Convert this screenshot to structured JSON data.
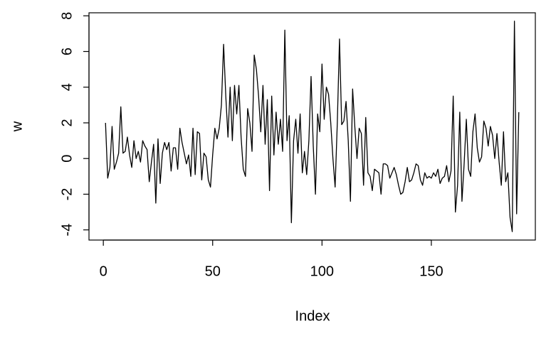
{
  "chart_data": {
    "type": "line",
    "xlabel": "Index",
    "ylabel": "w",
    "color": "#000000",
    "x": [
      1,
      2,
      3,
      4,
      5,
      6,
      7,
      8,
      9,
      10,
      11,
      12,
      13,
      14,
      15,
      16,
      17,
      18,
      19,
      20,
      21,
      22,
      23,
      24,
      25,
      26,
      27,
      28,
      29,
      30,
      31,
      32,
      33,
      34,
      35,
      36,
      37,
      38,
      39,
      40,
      41,
      42,
      43,
      44,
      45,
      46,
      47,
      48,
      49,
      50,
      51,
      52,
      53,
      54,
      55,
      56,
      57,
      58,
      59,
      60,
      61,
      62,
      63,
      64,
      65,
      66,
      67,
      68,
      69,
      70,
      71,
      72,
      73,
      74,
      75,
      76,
      77,
      78,
      79,
      80,
      81,
      82,
      83,
      84,
      85,
      86,
      87,
      88,
      89,
      90,
      91,
      92,
      93,
      94,
      95,
      96,
      97,
      98,
      99,
      100,
      101,
      102,
      103,
      104,
      105,
      106,
      107,
      108,
      109,
      110,
      111,
      112,
      113,
      114,
      115,
      116,
      117,
      118,
      119,
      120,
      121,
      122,
      123,
      124,
      125,
      126,
      127,
      128,
      129,
      130,
      131,
      132,
      133,
      134,
      135,
      136,
      137,
      138,
      139,
      140,
      141,
      142,
      143,
      144,
      145,
      146,
      147,
      148,
      149,
      150,
      151,
      152,
      153,
      154,
      155,
      156,
      157,
      158,
      159,
      160,
      161,
      162,
      163,
      164,
      165,
      166,
      167,
      168,
      169,
      170,
      171,
      172,
      173,
      174,
      175,
      176,
      177,
      178,
      179,
      180,
      181,
      182,
      183,
      184,
      185,
      186,
      187,
      188,
      189,
      190
    ],
    "values": [
      2.0,
      -1.1,
      -0.5,
      1.8,
      -0.6,
      -0.2,
      0.3,
      2.9,
      0.3,
      0.4,
      1.2,
      0.2,
      -0.5,
      1.0,
      0.0,
      0.4,
      -0.2,
      1.0,
      0.7,
      0.5,
      -1.3,
      -0.2,
      0.8,
      -2.5,
      1.1,
      -1.4,
      0.3,
      0.9,
      0.5,
      0.9,
      -0.7,
      0.6,
      0.6,
      -0.6,
      1.7,
      0.9,
      0.3,
      -0.3,
      0.2,
      -1.0,
      1.7,
      -0.9,
      1.5,
      1.4,
      -1.2,
      0.3,
      0.1,
      -1.2,
      -1.6,
      0.2,
      1.7,
      1.1,
      1.7,
      3.0,
      6.4,
      3.5,
      1.2,
      4.0,
      1.0,
      4.1,
      2.5,
      4.1,
      1.2,
      -0.6,
      -1.0,
      2.8,
      2.0,
      0.4,
      5.8,
      5.0,
      3.5,
      1.5,
      4.1,
      0.8,
      3.3,
      -1.8,
      3.5,
      0.2,
      2.6,
      0.8,
      2.2,
      0.4,
      7.2,
      1.0,
      2.4,
      -3.6,
      1.0,
      2.2,
      0.3,
      2.5,
      -0.8,
      0.4,
      -0.9,
      1.0,
      4.6,
      0.7,
      -2.0,
      2.5,
      1.5,
      5.3,
      2.2,
      4.0,
      3.6,
      2.0,
      0.0,
      -1.6,
      2.0,
      6.7,
      1.9,
      2.1,
      3.2,
      1.0,
      -2.4,
      3.9,
      1.8,
      0.0,
      1.7,
      1.4,
      -1.5,
      2.3,
      -0.8,
      -1.0,
      -1.8,
      -0.6,
      -0.7,
      -0.8,
      -2.0,
      -0.3,
      -0.3,
      -0.4,
      -1.1,
      -0.8,
      -0.5,
      -0.9,
      -1.5,
      -2.0,
      -1.9,
      -1.3,
      -0.5,
      -1.3,
      -1.2,
      -0.8,
      -0.3,
      -0.4,
      -1.2,
      -1.5,
      -0.8,
      -1.1,
      -1.0,
      -1.1,
      -0.8,
      -1.0,
      -0.6,
      -1.4,
      -1.1,
      -1.0,
      -0.4,
      -1.3,
      -0.7,
      3.5,
      -3.0,
      -1.5,
      2.6,
      -2.4,
      -0.3,
      2.2,
      -0.6,
      -1.0,
      1.5,
      2.5,
      0.6,
      -0.2,
      0.1,
      2.1,
      1.7,
      0.7,
      1.8,
      1.3,
      0.0,
      1.4,
      -0.2,
      -1.5,
      1.5,
      -1.3,
      -0.8,
      -3.3,
      -4.1,
      7.7,
      -3.1,
      2.6
    ],
    "xlim": [
      -6.56,
      197.56
    ],
    "xticks": [
      0,
      50,
      100,
      150
    ],
    "ylim": [
      -4.57,
      8.17
    ],
    "yticks": [
      -4,
      -2,
      0,
      2,
      4,
      6,
      8
    ]
  }
}
